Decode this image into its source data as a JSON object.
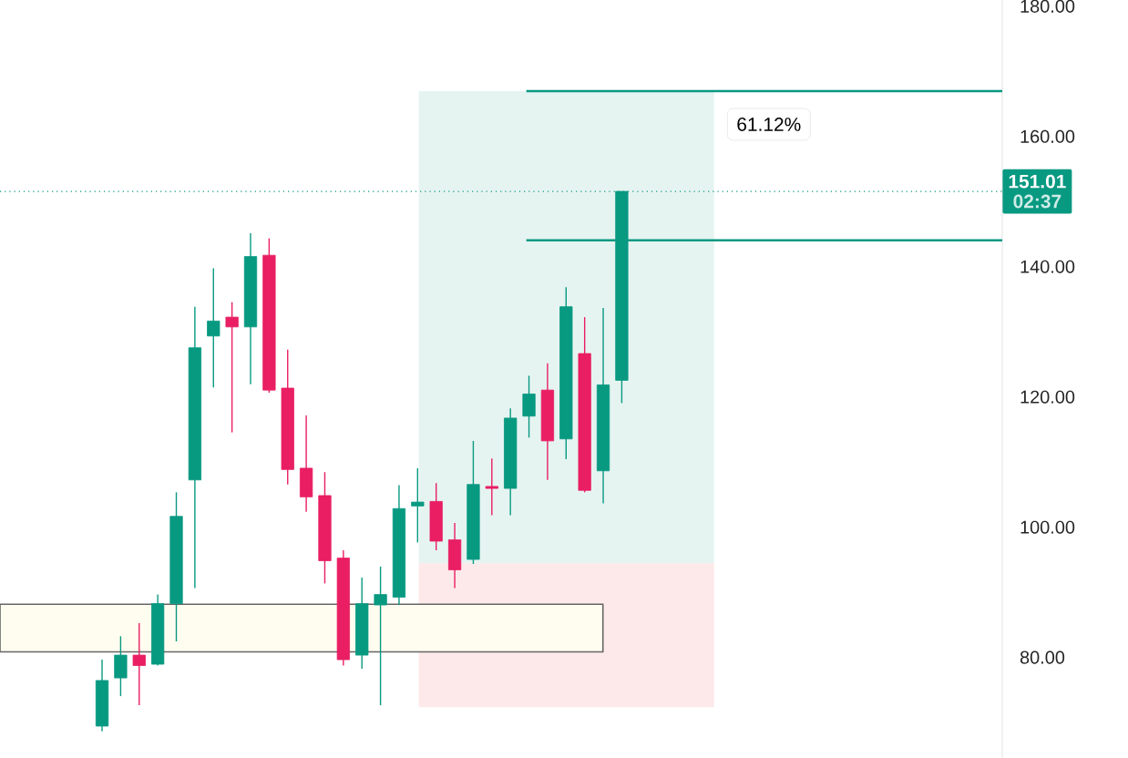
{
  "chart_data": {
    "type": "candlestick",
    "categories": [
      null,
      null,
      null,
      null,
      null,
      null,
      null,
      null,
      null,
      null,
      null,
      null,
      null,
      null,
      null,
      null,
      null,
      null,
      null,
      null,
      null,
      null,
      null,
      null,
      null,
      null,
      null,
      null,
      null,
      null,
      null,
      null,
      null,
      null,
      null,
      null,
      null,
      null,
      null,
      null,
      null,
      null,
      null,
      null,
      null,
      null,
      null,
      null,
      null,
      null,
      null,
      null,
      null,
      null
    ],
    "ohlc": [
      null,
      null,
      null,
      null,
      null,
      [
        68.9,
        79.1,
        68.1,
        75.9
      ],
      [
        76.3,
        82.7,
        73.5,
        79.8
      ],
      [
        79.8,
        84.7,
        72.1,
        78.2
      ],
      [
        78.4,
        89.1,
        78.2,
        87.7
      ],
      [
        87.7,
        104.8,
        81.9,
        101.1
      ],
      [
        106.7,
        133.3,
        90.1,
        127.0
      ],
      [
        128.8,
        139.2,
        120.9,
        131.1
      ],
      [
        131.7,
        134.0,
        114.0,
        130.2
      ],
      [
        130.2,
        144.6,
        121.4,
        141.0
      ],
      [
        141.2,
        143.8,
        120.1,
        120.5
      ],
      [
        120.8,
        126.7,
        106.0,
        108.3
      ],
      [
        108.5,
        116.6,
        101.8,
        104.1
      ],
      [
        104.3,
        107.9,
        90.8,
        94.3
      ],
      [
        94.7,
        95.9,
        78.2,
        79.1
      ],
      [
        79.8,
        91.7,
        77.7,
        87.7
      ],
      [
        87.5,
        93.4,
        72.1,
        89.1
      ],
      [
        88.7,
        105.9,
        87.5,
        102.3
      ],
      [
        102.7,
        108.5,
        97.1,
        103.3
      ],
      [
        103.4,
        106.2,
        95.9,
        97.3
      ],
      [
        97.5,
        100.1,
        90.1,
        92.9
      ],
      [
        94.5,
        112.7,
        93.8,
        106.0
      ],
      [
        105.7,
        110.0,
        101.3,
        105.4
      ],
      [
        105.4,
        117.7,
        101.3,
        116.2
      ],
      [
        116.5,
        122.7,
        113.2,
        119.9
      ],
      [
        120.5,
        124.6,
        106.7,
        112.7
      ],
      [
        113.0,
        136.3,
        109.9,
        133.3
      ],
      [
        126.1,
        131.7,
        104.8,
        105.1
      ],
      [
        108.1,
        133.1,
        103.1,
        121.3
      ],
      [
        122.0,
        151.01,
        118.5,
        151.01
      ],
      null,
      null,
      null,
      null,
      null,
      null,
      null,
      null,
      null,
      null,
      null,
      null,
      null,
      null,
      null,
      null,
      null,
      null,
      null,
      null
    ],
    "ylim": [
      64,
      180.4
    ],
    "yticks": [
      {
        "value": 80,
        "label": "80.00"
      },
      {
        "value": 100,
        "label": "100.00"
      },
      {
        "value": 120,
        "label": "120.00"
      },
      {
        "value": 140,
        "label": "140.00"
      },
      {
        "value": 160,
        "label": "160.00"
      },
      {
        "value": 180,
        "label": "180.00"
      }
    ],
    "ref_lines": [
      {
        "axis": "y",
        "value": 151.01,
        "label": "151.01",
        "color": "#089981",
        "line_style": "dotted"
      },
      {
        "axis": "y",
        "value": 166.4,
        "color": "#089981",
        "line_style": "solid"
      },
      {
        "axis": "y",
        "value": 143.5,
        "color": "#089981",
        "line_style": "solid"
      }
    ],
    "bands": [
      {
        "axis": "y",
        "from": 93.9,
        "to": 166.4,
        "color": "#e6f4f1"
      },
      {
        "axis": "y",
        "from": 71.8,
        "to": 93.9,
        "color": "#fde9ea"
      },
      {
        "axis": "y",
        "from": 80.3,
        "to": 87.6,
        "color": "#fffdf0"
      }
    ],
    "annotations": [
      "61.12%",
      "02:37"
    ]
  }
}
